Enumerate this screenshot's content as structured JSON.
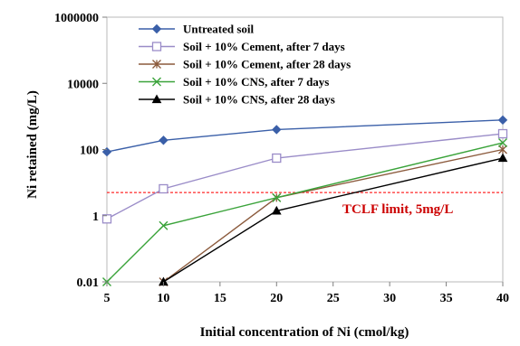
{
  "chart_data": {
    "type": "line",
    "xlabel": "Initial concentration of Ni (cmol/kg)",
    "ylabel": "Ni retained (mg/L)",
    "xlim": [
      5,
      40
    ],
    "ylim": [
      0.01,
      1000000
    ],
    "yscale": "log",
    "xticks": [
      "5",
      "10",
      "15",
      "20",
      "25",
      "30",
      "35",
      "40"
    ],
    "yticks": [
      "0.01",
      "1",
      "100",
      "10000",
      "1000000"
    ],
    "grid": false,
    "legend_position": "top-left",
    "series": [
      {
        "name": "Untreated soil",
        "x": [
          5,
          10,
          20,
          40
        ],
        "values": [
          85,
          190,
          400,
          780
        ],
        "color": "#3a5fa8",
        "marker": "diamond"
      },
      {
        "name": "Soil + 10% Cement, after 7 days",
        "x": [
          5,
          10,
          20,
          40
        ],
        "values": [
          0.8,
          6.5,
          55,
          300
        ],
        "color": "#9a8cc8",
        "marker": "open-square"
      },
      {
        "name": "Soil + 10% Cement, after 28 days",
        "x": [
          10,
          20,
          40
        ],
        "values": [
          0.01,
          3.5,
          100
        ],
        "color": "#8b5a3c",
        "marker": "star"
      },
      {
        "name": "Soil + 10% CNS, after 7 days",
        "x": [
          5,
          10,
          20,
          40
        ],
        "values": [
          0.01,
          0.5,
          3.5,
          160
        ],
        "color": "#3aa33a",
        "marker": "x"
      },
      {
        "name": "Soil + 10% CNS, after 28 days",
        "x": [
          10,
          20,
          40
        ],
        "values": [
          0.01,
          1.4,
          55
        ],
        "color": "#000000",
        "marker": "triangle"
      }
    ],
    "reference_line": {
      "value": 5,
      "color": "#ff2a2a",
      "label": "TCLF limit,  5mg/L"
    }
  }
}
